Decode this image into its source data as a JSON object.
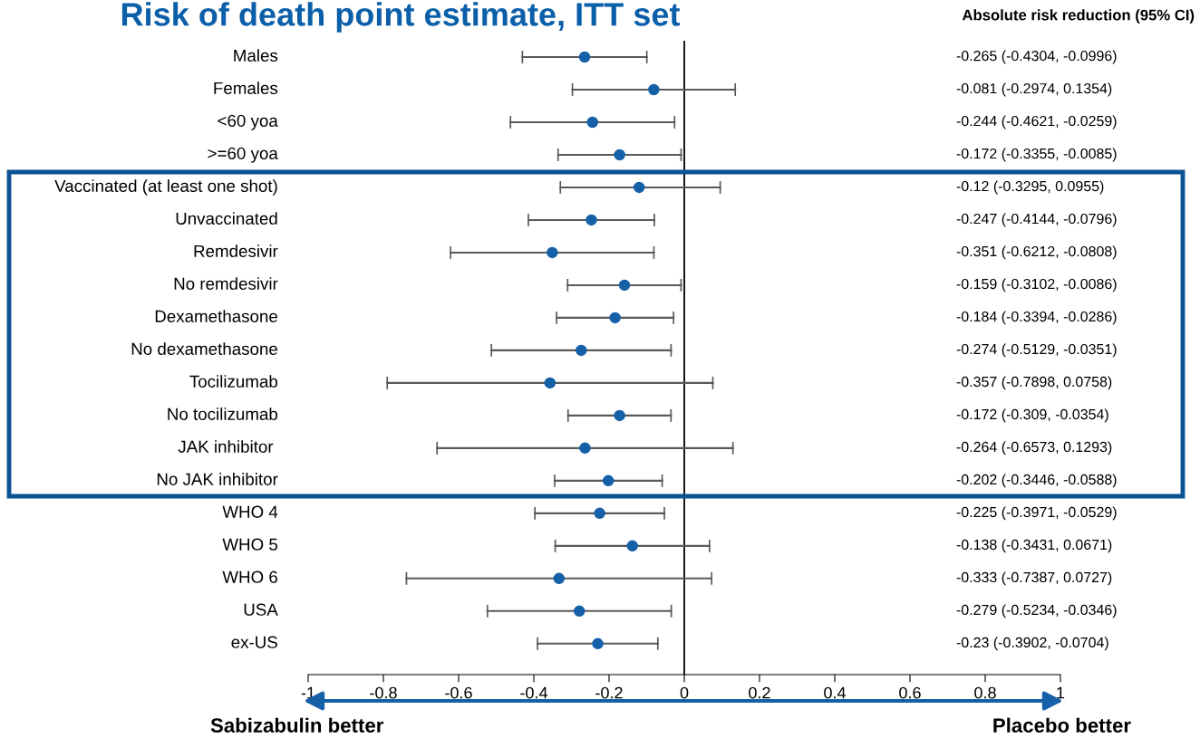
{
  "chart_data": {
    "type": "scatter",
    "orientation": "horizontal",
    "title": "Risk of death point estimate, ITT set",
    "categories": [
      "Males",
      "Females",
      "<60 yoa",
      ">=60 yoa",
      "Vaccinated (at least one shot)",
      "Unvaccinated",
      "Remdesivir",
      "No remdesivir",
      "Dexamethasone",
      "No dexamethasone",
      "Tocilizumab",
      "No tocilizumab",
      "JAK inhibitor ",
      "No JAK inhibitor",
      "WHO 4",
      "WHO 5",
      "WHO 6",
      "USA",
      "ex-US"
    ],
    "values": [
      -0.265,
      -0.081,
      -0.244,
      -0.172,
      -0.12,
      -0.247,
      -0.351,
      -0.159,
      -0.184,
      -0.274,
      -0.357,
      -0.172,
      -0.264,
      -0.202,
      -0.225,
      -0.138,
      -0.333,
      -0.279,
      -0.23
    ],
    "errors": [
      [
        -0.4304,
        -0.0996
      ],
      [
        -0.2974,
        0.1354
      ],
      [
        -0.4621,
        -0.0259
      ],
      [
        -0.3355,
        -0.0085
      ],
      [
        -0.3295,
        0.0955
      ],
      [
        -0.4144,
        -0.0796
      ],
      [
        -0.6212,
        -0.0808
      ],
      [
        -0.3102,
        -0.0086
      ],
      [
        -0.3394,
        -0.0286
      ],
      [
        -0.5129,
        -0.0351
      ],
      [
        -0.7898,
        0.0758
      ],
      [
        -0.309,
        -0.0354
      ],
      [
        -0.6573,
        0.1293
      ],
      [
        -0.3446,
        -0.0588
      ],
      [
        -0.3971,
        -0.0529
      ],
      [
        -0.3431,
        0.0671
      ],
      [
        -0.7387,
        0.0727
      ],
      [
        -0.5234,
        -0.0346
      ],
      [
        -0.3902,
        -0.0704
      ]
    ],
    "color": "#1660a8",
    "marker": "circle",
    "xlim": [
      -1,
      1
    ],
    "xticks": [
      -1,
      -0.8,
      -0.6,
      -0.4,
      -0.2,
      0,
      0.2,
      0.4,
      0.6,
      0.8,
      1
    ],
    "grid": false,
    "tick_labels": "x",
    "ref_lines": [
      {
        "axis": "x",
        "value": 0,
        "color": "#000000"
      }
    ],
    "annotations": [
      "Absolute risk reduction (95% CI)",
      "-0.265 (-0.4304, -0.0996)",
      "-0.081 (-0.2974, 0.1354)",
      "-0.244 (-0.4621, -0.0259)",
      "-0.172 (-0.3355, -0.0085)",
      "-0.12 (-0.3295, 0.0955)",
      "-0.247 (-0.4144, -0.0796)",
      "-0.351 (-0.6212, -0.0808)",
      "-0.159 (-0.3102, -0.0086)",
      "-0.184 (-0.3394, -0.0286)",
      "-0.274 (-0.5129, -0.0351)",
      "-0.357 (-0.7898, 0.0758)",
      "-0.172 (-0.309, -0.0354)",
      "-0.264 (-0.6573, 0.1293)",
      "-0.202 (-0.3446, -0.0588)",
      "-0.225 (-0.3971, -0.0529)",
      "-0.138 (-0.3431, 0.0671)",
      "-0.333 (-0.7387, 0.0727)",
      "-0.279 (-0.5234, -0.0346)",
      "-0.23 (-0.3902, -0.0704)",
      "Sabizabulin better",
      "Placebo better"
    ]
  }
}
